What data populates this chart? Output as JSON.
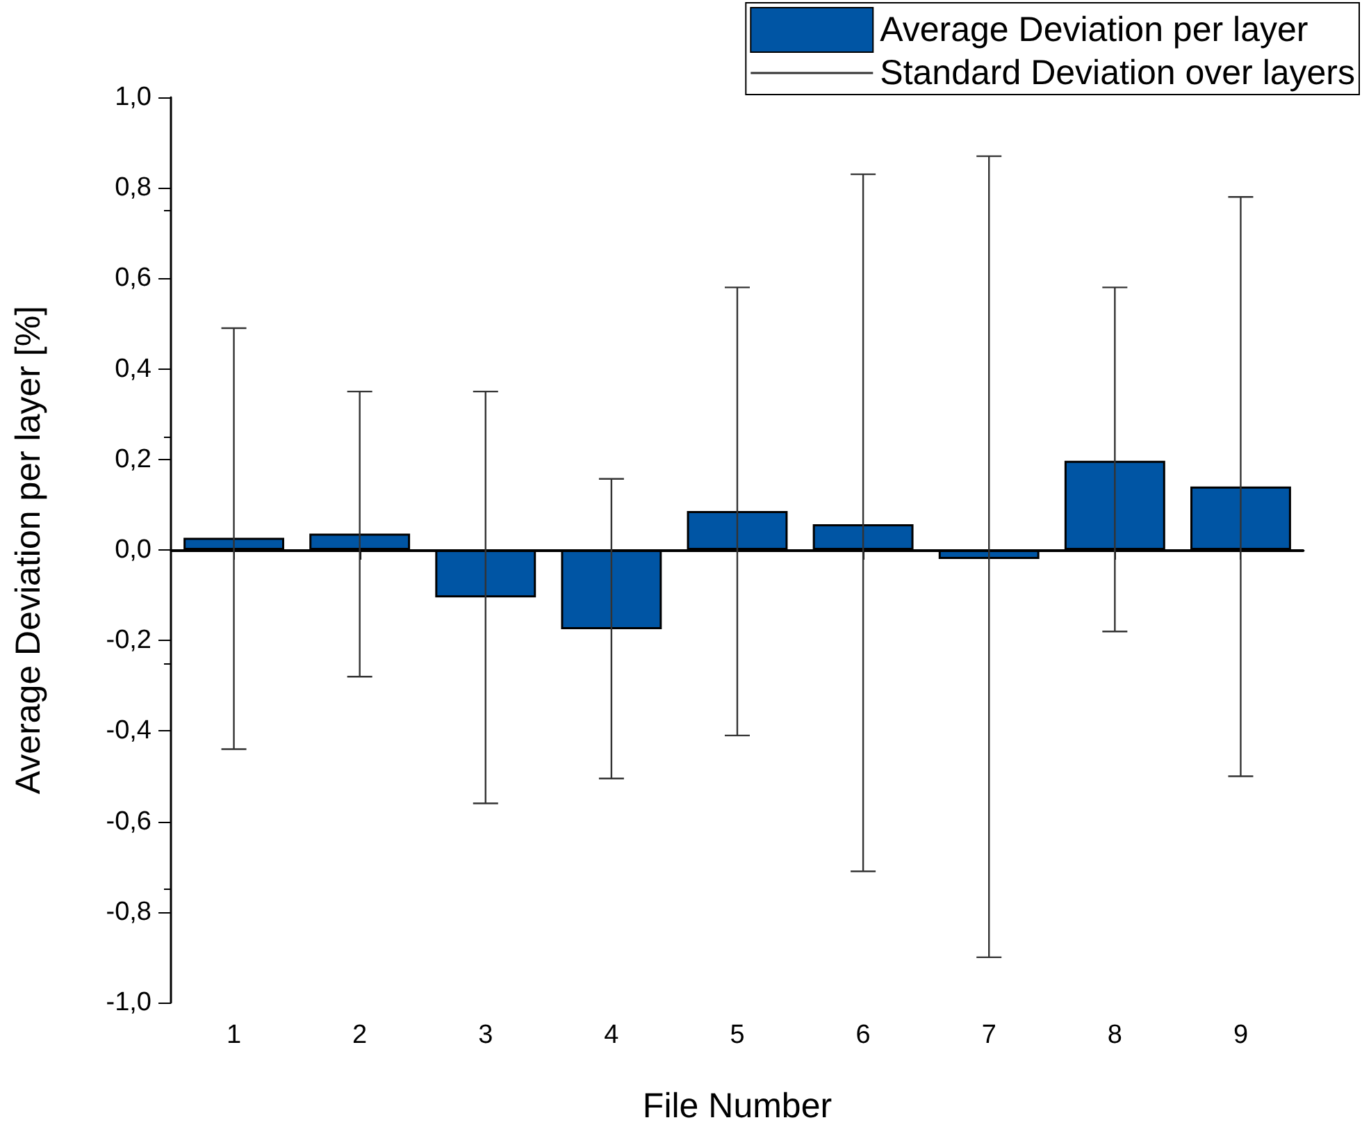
{
  "chart_data": {
    "type": "bar",
    "xlabel": "File Number",
    "ylabel": "Average Deviation per layer [%]",
    "categories": [
      "1",
      "2",
      "3",
      "4",
      "5",
      "6",
      "7",
      "8",
      "9"
    ],
    "series": [
      {
        "name": "Average Deviation per layer",
        "color": "#0055a4",
        "values": [
          0.027,
          0.036,
          -0.105,
          -0.175,
          0.086,
          0.057,
          -0.02,
          0.197,
          0.14
        ],
        "errors": [
          [
            -0.44,
            0.49
          ],
          [
            -0.28,
            0.35
          ],
          [
            -0.56,
            0.35
          ],
          [
            -0.505,
            0.157
          ],
          [
            -0.41,
            0.58
          ],
          [
            -0.71,
            0.83
          ],
          [
            -0.9,
            0.87
          ],
          [
            -0.18,
            0.58
          ],
          [
            -0.5,
            0.78
          ]
        ]
      }
    ],
    "annotations": [
      "Standard Deviation over layers"
    ],
    "ylim": [
      -1,
      1
    ],
    "yticks": [
      {
        "value": -1,
        "label": "-1,0"
      },
      {
        "value": -0.8,
        "label": "-0,8"
      },
      {
        "value": -0.6,
        "label": "-0,6"
      },
      {
        "value": -0.4,
        "label": "-0,4"
      },
      {
        "value": -0.2,
        "label": "-0,2"
      },
      {
        "value": 0,
        "label": "0,0"
      },
      {
        "value": 0.2,
        "label": "0,2"
      },
      {
        "value": 0.4,
        "label": "0,4"
      },
      {
        "value": 0.6,
        "label": "0,6"
      },
      {
        "value": 0.8,
        "label": "0,8"
      },
      {
        "value": 1,
        "label": "1,0"
      }
    ],
    "ref_lines": [
      {
        "axis": "y",
        "value": 0,
        "color": "#000000"
      }
    ],
    "grid": false,
    "legend": "top right"
  }
}
